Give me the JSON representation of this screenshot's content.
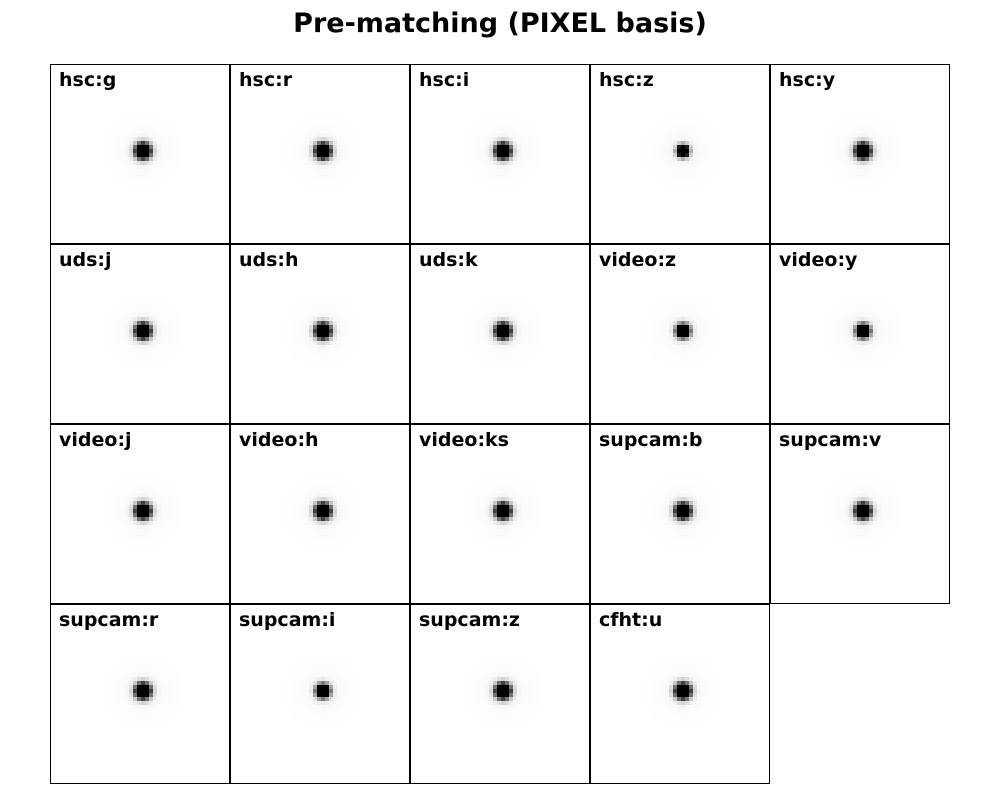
{
  "chart_data": {
    "type": "heatmap",
    "title": "Pre-matching (PIXEL basis)",
    "layout": {
      "rows": 4,
      "cols": 5
    },
    "colormap": "gray_r",
    "panels": [
      {
        "label": "hsc:g",
        "core_size": "large"
      },
      {
        "label": "hsc:r",
        "core_size": "large"
      },
      {
        "label": "hsc:i",
        "core_size": "large"
      },
      {
        "label": "hsc:z",
        "core_size": "small"
      },
      {
        "label": "hsc:y",
        "core_size": "large"
      },
      {
        "label": "uds:j",
        "core_size": "large"
      },
      {
        "label": "uds:h",
        "core_size": "large"
      },
      {
        "label": "uds:k",
        "core_size": "large"
      },
      {
        "label": "video:z",
        "core_size": "medium"
      },
      {
        "label": "video:y",
        "core_size": "medium"
      },
      {
        "label": "video:j",
        "core_size": "large"
      },
      {
        "label": "video:h",
        "core_size": "large"
      },
      {
        "label": "video:ks",
        "core_size": "large"
      },
      {
        "label": "supcam:b",
        "core_size": "large"
      },
      {
        "label": "supcam:v",
        "core_size": "large"
      },
      {
        "label": "supcam:r",
        "core_size": "large"
      },
      {
        "label": "supcam:i",
        "core_size": "medium"
      },
      {
        "label": "supcam:z",
        "core_size": "large"
      },
      {
        "label": "cfht:u",
        "core_size": "large"
      }
    ]
  }
}
